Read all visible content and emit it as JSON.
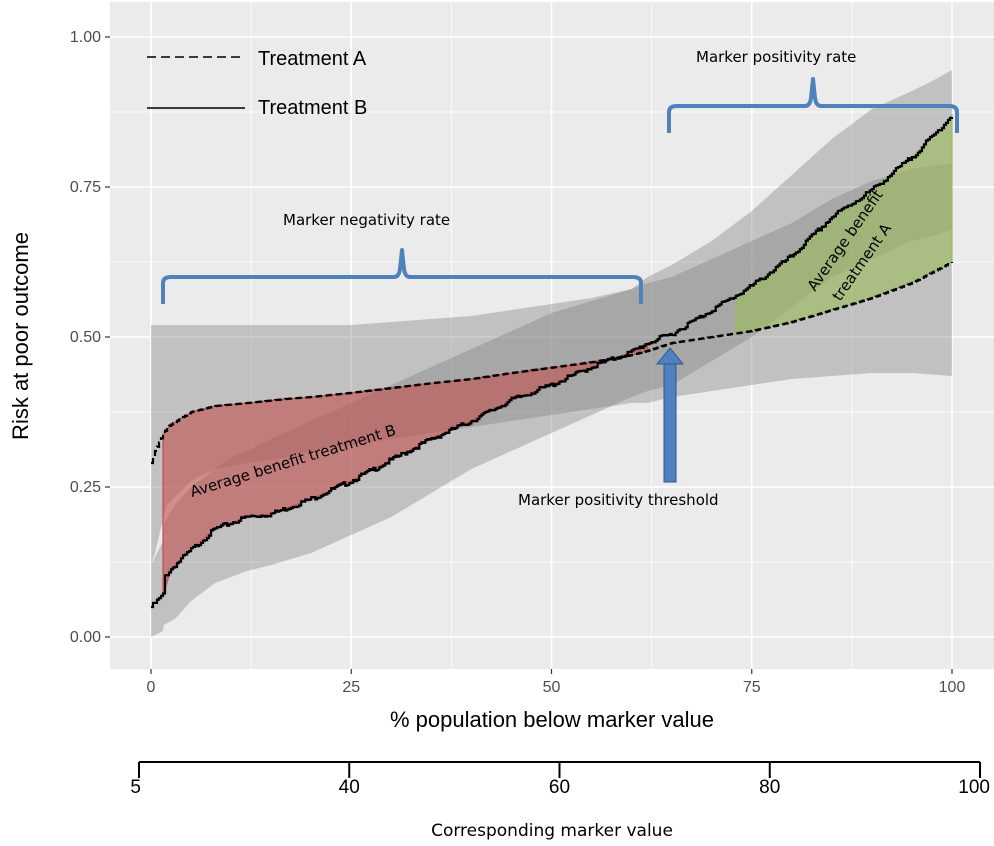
{
  "chart_data": {
    "type": "line",
    "xlabel": "% population below marker value",
    "ylabel": "Risk at poor outcome",
    "xlim": [
      -2,
      102
    ],
    "ylim": [
      -0.045,
      1.05
    ],
    "x_ticks": [
      0,
      25,
      50,
      75,
      100
    ],
    "x_tick_labels": [
      "0",
      "25",
      "50",
      "75",
      "100"
    ],
    "y_ticks": [
      0.0,
      0.25,
      0.5,
      0.75,
      1.0
    ],
    "y_tick_labels": [
      "0.00",
      "0.25",
      "0.50",
      "0.75",
      "1.00"
    ],
    "grid": true,
    "legend_position": "top-left",
    "series": [
      {
        "name": "Treatment A",
        "style": "dashed",
        "x": [
          0,
          0.5,
          1.2,
          2,
          5,
          8,
          12,
          17,
          20,
          25,
          30,
          35,
          40,
          45,
          50,
          55,
          60,
          62,
          65,
          70,
          75,
          80,
          85,
          90,
          95,
          100
        ],
        "y": [
          0.29,
          0.31,
          0.33,
          0.35,
          0.375,
          0.385,
          0.39,
          0.397,
          0.4,
          0.407,
          0.415,
          0.423,
          0.43,
          0.44,
          0.449,
          0.458,
          0.47,
          0.477,
          0.49,
          0.5,
          0.51,
          0.525,
          0.545,
          0.565,
          0.59,
          0.625
        ],
        "ci_upper": [
          0.52,
          0.52,
          0.52,
          0.52,
          0.52,
          0.52,
          0.52,
          0.52,
          0.52,
          0.52,
          0.525,
          0.53,
          0.535,
          0.545,
          0.555,
          0.565,
          0.58,
          0.59,
          0.6,
          0.63,
          0.66,
          0.69,
          0.73,
          0.76,
          0.78,
          0.79
        ],
        "ci_lower": [
          0.12,
          0.14,
          0.18,
          0.22,
          0.26,
          0.28,
          0.29,
          0.3,
          0.31,
          0.32,
          0.33,
          0.34,
          0.35,
          0.36,
          0.37,
          0.38,
          0.39,
          0.39,
          0.4,
          0.41,
          0.42,
          0.43,
          0.435,
          0.44,
          0.44,
          0.435
        ]
      },
      {
        "name": "Treatment B",
        "style": "solid",
        "x": [
          0,
          1.5,
          1.6,
          3,
          5,
          8,
          10,
          12,
          15,
          20,
          25,
          30,
          35,
          40,
          45,
          50,
          55,
          60,
          62,
          65,
          70,
          75,
          80,
          85,
          90,
          95,
          98,
          100
        ],
        "y": [
          0.05,
          0.07,
          0.1,
          0.12,
          0.145,
          0.18,
          0.19,
          0.2,
          0.205,
          0.23,
          0.26,
          0.295,
          0.33,
          0.36,
          0.395,
          0.42,
          0.45,
          0.475,
          0.49,
          0.505,
          0.545,
          0.585,
          0.635,
          0.7,
          0.745,
          0.8,
          0.84,
          0.87
        ],
        "ci_upper": [
          0.12,
          0.16,
          0.19,
          0.22,
          0.25,
          0.28,
          0.3,
          0.31,
          0.33,
          0.36,
          0.39,
          0.42,
          0.45,
          0.48,
          0.51,
          0.54,
          0.56,
          0.58,
          0.6,
          0.62,
          0.66,
          0.71,
          0.77,
          0.83,
          0.88,
          0.91,
          0.93,
          0.945
        ],
        "ci_lower": [
          0.0,
          0.01,
          0.02,
          0.03,
          0.06,
          0.09,
          0.1,
          0.11,
          0.12,
          0.14,
          0.17,
          0.2,
          0.24,
          0.28,
          0.31,
          0.34,
          0.37,
          0.4,
          0.41,
          0.42,
          0.46,
          0.5,
          0.55,
          0.6,
          0.63,
          0.66,
          0.67,
          0.68
        ]
      }
    ],
    "shaded_regions": [
      {
        "label": "Average benefit treatment B",
        "color": "#c0504d",
        "x_range": [
          1.5,
          62
        ]
      },
      {
        "label": "Average benefit treatment A",
        "color": "#9bbb59",
        "x_range": [
          73,
          100
        ]
      }
    ],
    "annotations": {
      "negativity_rate": "Marker negativity rate",
      "positivity_rate": "Marker positivity rate",
      "threshold": "Marker positivity threshold",
      "benefit_b": "Average benefit treatment B",
      "benefit_a_line1": "Average benefit",
      "benefit_a_line2": "treatment A"
    },
    "secondary_axis": {
      "title": "Corresponding marker value",
      "ticks": [
        {
          "label": "5",
          "pct": 0
        },
        {
          "label": "40",
          "pct": 25
        },
        {
          "label": "60",
          "pct": 50
        },
        {
          "label": "80",
          "pct": 75
        },
        {
          "label": "100",
          "pct": 100
        }
      ]
    },
    "colors": {
      "panel_bg": "#ebebeb",
      "ribbon": "#7f7f7f",
      "bracket": "#4f81bd",
      "arrow": "#4f81bd"
    }
  }
}
